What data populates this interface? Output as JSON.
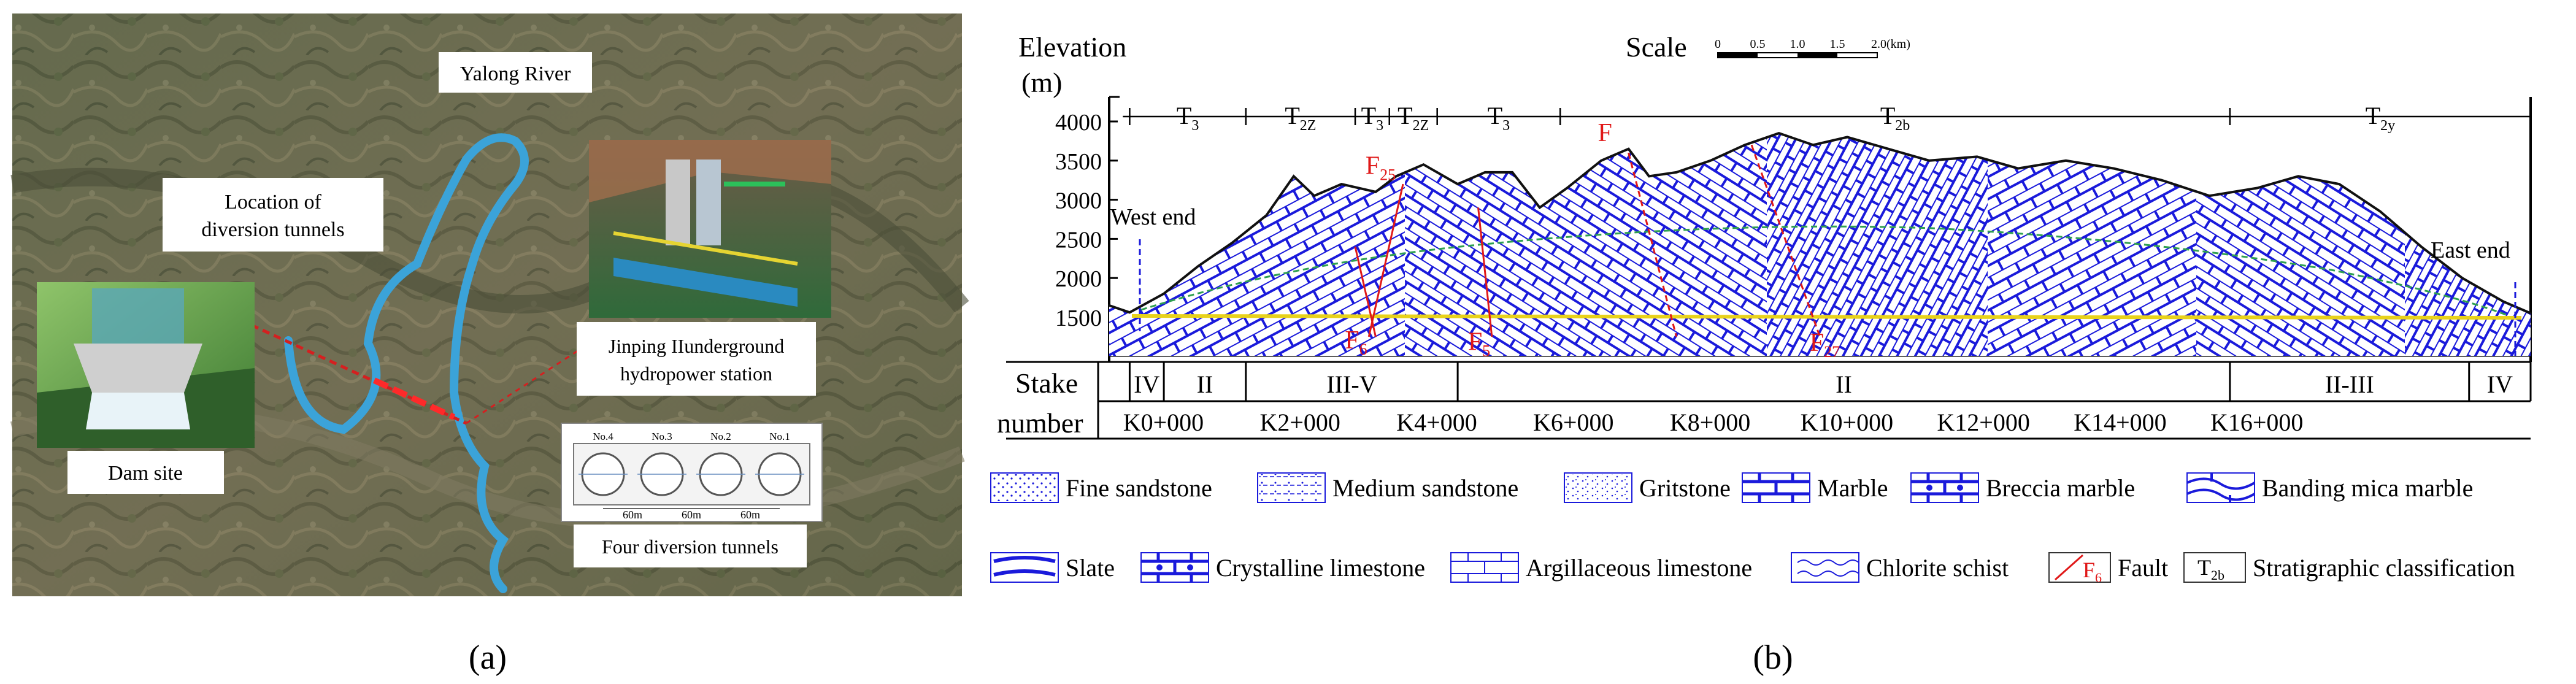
{
  "panel_a": {
    "caption": "(a)",
    "labels": {
      "river": "Yalong River",
      "location": [
        "Location of",
        "diversion tunnels"
      ],
      "dam": "Dam site",
      "station": [
        "Jinping IIunderground",
        "hydropower station"
      ],
      "four_tunnels": "Four  diversion tunnels"
    },
    "tunnel_numbers": [
      "No.4",
      "No.3",
      "No.2",
      "No.1"
    ],
    "spacing_labels": [
      "60m",
      "60m",
      "60m"
    ],
    "colors": {
      "river": "#3ba3d9",
      "line": "#d42020"
    }
  },
  "panel_b": {
    "caption": "(b)",
    "y_title": [
      "Elevation",
      "(m)"
    ],
    "y_ticks": [
      4000,
      3500,
      3000,
      2500,
      2000,
      1500
    ],
    "scale_title": "Scale",
    "scale_ticks": [
      "0",
      "0.5",
      "1.0",
      "1.5",
      "2.0(km)"
    ],
    "strata": [
      {
        "label": "T3",
        "base": "T",
        "sub": "3",
        "from": 0.3,
        "to": 2.0
      },
      {
        "label": "T2z",
        "base": "T",
        "sub": "2Z",
        "from": 2.0,
        "to": 3.6
      },
      {
        "label": "T3",
        "base": "T",
        "sub": "3",
        "from": 3.6,
        "to": 4.1
      },
      {
        "label": "T2z",
        "base": "T",
        "sub": "2Z",
        "from": 4.1,
        "to": 4.8
      },
      {
        "label": "T3",
        "base": "T",
        "sub": "3",
        "from": 4.8,
        "to": 6.6
      },
      {
        "label": "T2b",
        "base": "T",
        "sub": "2b",
        "from": 6.6,
        "to": 16.4
      },
      {
        "label": "T2y",
        "base": "T",
        "sub": "2y",
        "from": 16.4,
        "to": 20.8
      }
    ],
    "faults": [
      {
        "base": "F",
        "sub": "25",
        "km": 4.0
      },
      {
        "base": "F",
        "sub": "",
        "km": 7.3
      },
      {
        "base": "F",
        "sub": "6",
        "km": 3.6
      },
      {
        "base": "F",
        "sub": "5",
        "km": 5.4
      },
      {
        "base": "F",
        "sub": "27",
        "km": 10.3
      }
    ],
    "ends": {
      "west": "West end",
      "east": "East end"
    },
    "stake_label": "Stake",
    "number_label": "number",
    "rock_classes": [
      {
        "label": "IV",
        "from": 0.3,
        "to": 0.8
      },
      {
        "label": "II",
        "from": 0.8,
        "to": 2.0
      },
      {
        "label": "III-V",
        "from": 2.0,
        "to": 5.1
      },
      {
        "label": "II",
        "from": 5.1,
        "to": 16.4
      },
      {
        "label": "II-III",
        "from": 16.4,
        "to": 19.9
      },
      {
        "label": "IV",
        "from": 19.9,
        "to": 20.8
      }
    ],
    "stake_numbers": [
      "K0+000",
      "K2+000",
      "K4+000",
      "K6+000",
      "K8+000",
      "K10+000",
      "K12+000",
      "K14+000",
      "K16+000"
    ],
    "legend": [
      {
        "label": "Fine sandstone",
        "pattern": "fine"
      },
      {
        "label": "Medium sandstone",
        "pattern": "medium"
      },
      {
        "label": "Gritstone",
        "pattern": "grit"
      },
      {
        "label": "Marble",
        "pattern": "marble"
      },
      {
        "label": "Breccia marble",
        "pattern": "breccia"
      },
      {
        "label": "Banding mica marble",
        "pattern": "banding"
      },
      {
        "label": "Slate",
        "pattern": "slate"
      },
      {
        "label": "Crystalline limestone",
        "pattern": "crystal"
      },
      {
        "label": "Argillaceous limestone",
        "pattern": "argil"
      },
      {
        "label": "Chlorite schist",
        "pattern": "chlorite"
      },
      {
        "label": "Fault",
        "pattern": "fault",
        "symbol_base": "F",
        "symbol_sub": "6"
      },
      {
        "label": "Stratigraphic classification",
        "pattern": "strat",
        "symbol_base": "T",
        "symbol_sub": "2b"
      }
    ],
    "colors": {
      "rock": "#1a1adb",
      "fault": "#e01818",
      "tunnel": "#e8d21a",
      "water": "#2fa050"
    }
  }
}
